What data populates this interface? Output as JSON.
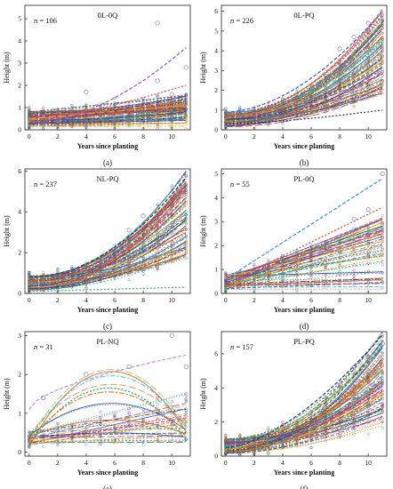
{
  "figure": {
    "background": "#ffffff"
  },
  "chart_data": [
    {
      "id": "a",
      "caption": "(a)",
      "type": "line",
      "title": "0L-0Q",
      "n_prefix": "n",
      "n_value": "= 106",
      "xlabel": "Years since planting",
      "ylabel": "Height (m)",
      "xlim": [
        -0.3,
        11.3
      ],
      "ylim": [
        0,
        5.6
      ],
      "xticks": [
        "0",
        "2",
        "4",
        "6",
        "8",
        "10"
      ],
      "yticks": [
        "0",
        "1",
        "2",
        "3",
        "4",
        "5"
      ],
      "series_count": 106,
      "grid": false,
      "highlight_curves": [
        {
          "start": 0.3,
          "end": 3.7,
          "shape": 1.8,
          "color": "#9b59b6"
        },
        {
          "start": 0.4,
          "end": 2.0,
          "shape": 1.3,
          "color": "#e94560"
        },
        {
          "start": 0.3,
          "end": 1.5,
          "shape": 1.2,
          "color": "#7d3c98"
        },
        {
          "start": 0.5,
          "end": 1.1,
          "shape": 1.0,
          "color": "#f39c12"
        }
      ],
      "outliers": [
        [
          9,
          4.8
        ],
        [
          9,
          2.2
        ],
        [
          11,
          2.8
        ],
        [
          4,
          1.7
        ],
        [
          10,
          1.6
        ]
      ]
    },
    {
      "id": "b",
      "caption": "(b)",
      "type": "line",
      "title": "0L-PQ",
      "n_prefix": "n",
      "n_value": "= 226",
      "xlabel": "Years since planting",
      "ylabel": "Height (m)",
      "xlim": [
        -0.3,
        11.3
      ],
      "ylim": [
        0,
        6.3
      ],
      "xticks": [
        "0",
        "2",
        "4",
        "6",
        "8",
        "10"
      ],
      "yticks": [
        "0",
        "1",
        "2",
        "3",
        "4",
        "5",
        "6"
      ],
      "series_count": 226,
      "grid": false,
      "highlight_curves": [
        {
          "start": 0.9,
          "end": 6.0,
          "shape": 1.8,
          "color": "#3b5bdb"
        },
        {
          "start": 0.3,
          "end": 1.0,
          "shape": 1.5,
          "color": "#333333"
        }
      ],
      "outliers": [
        [
          9,
          4.7
        ],
        [
          10,
          5.4
        ],
        [
          8,
          4.1
        ]
      ]
    },
    {
      "id": "c",
      "caption": "(c)",
      "type": "line",
      "title": "NL-PQ",
      "n_prefix": "n",
      "n_value": "= 237",
      "xlabel": "Years since planting",
      "ylabel": "Height (m)",
      "xlim": [
        -0.3,
        11.3
      ],
      "ylim": [
        0,
        6.1
      ],
      "xticks": [
        "0",
        "2",
        "4",
        "6",
        "8",
        "10"
      ],
      "yticks": [
        "0",
        "2",
        "4",
        "6"
      ],
      "series_count": 237,
      "grid": false,
      "highlight_curves": [
        {
          "start": 0.8,
          "end": 5.7,
          "shape": 2.0,
          "color": "#2c3e50"
        },
        {
          "start": 0.1,
          "end": 0.3,
          "shape": 1.0,
          "color": "#27ae60"
        }
      ],
      "outliers": [
        [
          7,
          3.1
        ],
        [
          8,
          3.8
        ]
      ]
    },
    {
      "id": "d",
      "caption": "(d)",
      "type": "line",
      "title": "PL-0Q",
      "n_prefix": "n",
      "n_value": "= 55",
      "xlabel": "Years since planting",
      "ylabel": "Height (m)",
      "xlim": [
        -0.3,
        11.3
      ],
      "ylim": [
        0,
        5.2
      ],
      "xticks": [
        "0",
        "2",
        "4",
        "6",
        "8",
        "10"
      ],
      "yticks": [
        "0",
        "1",
        "2",
        "3",
        "4",
        "5"
      ],
      "series_count": 55,
      "grid": false,
      "highlight_curves": [
        {
          "start": 0.6,
          "end": 4.8,
          "shape": 1.0,
          "color": "#3498db"
        },
        {
          "start": 0.4,
          "end": 3.6,
          "shape": 1.0,
          "color": "#e74c3c"
        },
        {
          "start": 0.4,
          "end": 3.1,
          "shape": 1.0,
          "color": "#8e44ad"
        }
      ],
      "outliers": [
        [
          11,
          5.0
        ],
        [
          9,
          3.1
        ],
        [
          10,
          3.5
        ]
      ]
    },
    {
      "id": "e",
      "caption": "(e)",
      "type": "line",
      "title": "PL-NQ",
      "n_prefix": "n",
      "n_value": "= 31",
      "xlabel": "Years since planting",
      "ylabel": "Height (m)",
      "xlim": [
        -0.3,
        11.3
      ],
      "ylim": [
        -0.1,
        3.1
      ],
      "xticks": [
        "0",
        "2",
        "4",
        "6",
        "8",
        "10"
      ],
      "yticks": [
        "0",
        "1",
        "2",
        "3"
      ],
      "series_count": 31,
      "grid": false,
      "highlight_curves": [
        {
          "start": 1.1,
          "end": 2.5,
          "shape": 0.6,
          "color": "#c39bd3"
        },
        {
          "start": 0.2,
          "end": 1.6,
          "shape": -1,
          "color": "#16a085"
        },
        {
          "start": 0.3,
          "end": 1.5,
          "shape": -1,
          "color": "#e67e22"
        }
      ],
      "outliers": [
        [
          10,
          3.0
        ],
        [
          7,
          2.2
        ],
        [
          4,
          2.0
        ],
        [
          1,
          1.4
        ],
        [
          11,
          2.2
        ]
      ]
    },
    {
      "id": "f",
      "caption": "(f)",
      "type": "line",
      "title": "PL-PQ",
      "n_prefix": "n",
      "n_value": "= 157",
      "xlabel": "Years since planting",
      "ylabel": "Height (m)",
      "xlim": [
        -0.3,
        11.3
      ],
      "ylim": [
        0,
        7.3
      ],
      "xticks": [
        "0",
        "2",
        "4",
        "6",
        "8",
        "10"
      ],
      "yticks": [
        "0",
        "2",
        "4",
        "6"
      ],
      "series_count": 157,
      "grid": false,
      "highlight_curves": [
        {
          "start": 0.5,
          "end": 7.1,
          "shape": 1.6,
          "color": "#1f3a93"
        },
        {
          "start": 0.4,
          "end": 6.2,
          "shape": 1.6,
          "color": "#f1c40f"
        }
      ],
      "outliers": [
        [
          10,
          5.8
        ],
        [
          9,
          5.2
        ],
        [
          11,
          6.6
        ]
      ]
    }
  ]
}
